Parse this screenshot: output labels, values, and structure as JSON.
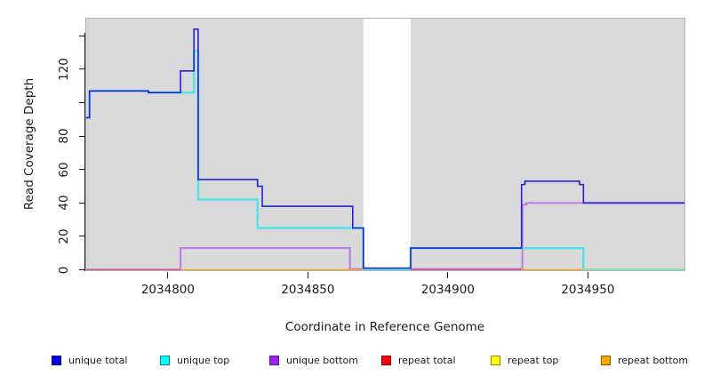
{
  "chart_data": {
    "type": "line",
    "step": true,
    "title": "",
    "xlabel": "Coordinate in Reference Genome",
    "ylabel": "Read Coverage Depth",
    "xlim": [
      2034770.5,
      2034984.8
    ],
    "ylim": [
      0,
      150
    ],
    "grid": false,
    "plot_bg": "#d9d9d9",
    "plot_border": "#b3b3b3",
    "axis_color": "#1a1a1a",
    "x_ticks": [
      2034800,
      2034850,
      2034900,
      2034950
    ],
    "x_tick_labels": [
      "2034800",
      "2034850",
      "2034900",
      "2034950"
    ],
    "y_ticks": [
      0,
      20,
      40,
      60,
      80,
      100,
      120,
      140
    ],
    "y_tick_labels": [
      "0",
      "20",
      "40",
      "60",
      "80",
      "",
      "120",
      ""
    ],
    "gap_region": {
      "x0": 2034869.8,
      "x1": 2034886.7,
      "color": "#ffffff"
    },
    "series": [
      {
        "name": "repeat total",
        "color": "#e85050",
        "width": 1.3,
        "dy": 1.3,
        "points": [
          [
            2034770.5,
            0
          ],
          [
            2034984.8,
            0
          ]
        ]
      },
      {
        "name": "unique bottom",
        "color": "#bf7fe9",
        "width": 2.2,
        "points": [
          [
            2034770.5,
            0
          ],
          [
            2034804.5,
            0
          ],
          [
            2034804.5,
            13
          ],
          [
            2034865,
            13
          ],
          [
            2034865,
            0.5
          ],
          [
            2034926.6,
            0.5
          ],
          [
            2034926.6,
            39
          ],
          [
            2034928,
            39
          ],
          [
            2034928,
            40
          ],
          [
            2034984.8,
            40
          ]
        ]
      },
      {
        "name": "unique top",
        "color": "#4de4ef",
        "width": 2.4,
        "points": [
          [
            2034770.5,
            91
          ],
          [
            2034772,
            91
          ],
          [
            2034772,
            107
          ],
          [
            2034793,
            107
          ],
          [
            2034793,
            106
          ],
          [
            2034809.3,
            106
          ],
          [
            2034809.3,
            131
          ],
          [
            2034810.8,
            131
          ],
          [
            2034810.8,
            42
          ],
          [
            2034832,
            42
          ],
          [
            2034832,
            25
          ],
          [
            2034869.8,
            25
          ],
          [
            2034869.8,
            0
          ],
          [
            2034886.7,
            0
          ],
          [
            2034886.7,
            13
          ],
          [
            2034948.4,
            13
          ],
          [
            2034948.4,
            0
          ],
          [
            2034984.8,
            0
          ]
        ]
      },
      {
        "name": "unique total",
        "color": "#2222e0",
        "width": 1.6,
        "points": [
          [
            2034770.5,
            91
          ],
          [
            2034772,
            91
          ],
          [
            2034772,
            107
          ],
          [
            2034793,
            107
          ],
          [
            2034793,
            106
          ],
          [
            2034804.5,
            106
          ],
          [
            2034804.5,
            119
          ],
          [
            2034809.3,
            119
          ],
          [
            2034809.3,
            144
          ],
          [
            2034810.8,
            144
          ],
          [
            2034810.8,
            54
          ],
          [
            2034832,
            54
          ],
          [
            2034832,
            50
          ],
          [
            2034833.7,
            50
          ],
          [
            2034833.7,
            38
          ],
          [
            2034866,
            38
          ],
          [
            2034866,
            25
          ],
          [
            2034869.8,
            25
          ],
          [
            2034869.8,
            1
          ],
          [
            2034886.7,
            1
          ],
          [
            2034886.7,
            13
          ],
          [
            2034926.3,
            13
          ],
          [
            2034926.3,
            51
          ],
          [
            2034927.5,
            51
          ],
          [
            2034927.5,
            53
          ],
          [
            2034947,
            53
          ],
          [
            2034947,
            51
          ],
          [
            2034948.4,
            51
          ],
          [
            2034948.4,
            40
          ],
          [
            2034984.8,
            40
          ]
        ]
      }
    ],
    "baseline_overlays": [
      {
        "x0": 2034770.5,
        "x1": 2034804.5,
        "color": "#d05480"
      },
      {
        "x0": 2034804.5,
        "x1": 2034869.8,
        "color": "#ffa510"
      },
      {
        "x0": 2034886.7,
        "x1": 2034926.3,
        "color": "#d05480"
      },
      {
        "x0": 2034926.3,
        "x1": 2034948.4,
        "color": "#ffa510"
      },
      {
        "x0": 2034948.4,
        "x1": 2034984.8,
        "color": "#90e090"
      }
    ],
    "legend_position": "bottom",
    "legend": [
      {
        "label": "unique total",
        "fill": "#0000ee",
        "border": "#00008b"
      },
      {
        "label": "unique top",
        "fill": "#00ffff",
        "border": "#008b8b"
      },
      {
        "label": "unique bottom",
        "fill": "#a020f0",
        "border": "#551a8b"
      },
      {
        "label": "repeat total",
        "fill": "#ff0000",
        "border": "#8b0000"
      },
      {
        "label": "repeat top",
        "fill": "#ffff00",
        "border": "#8b8b00"
      },
      {
        "label": "repeat bottom",
        "fill": "#ffa500",
        "border": "#8b5a00"
      }
    ]
  }
}
